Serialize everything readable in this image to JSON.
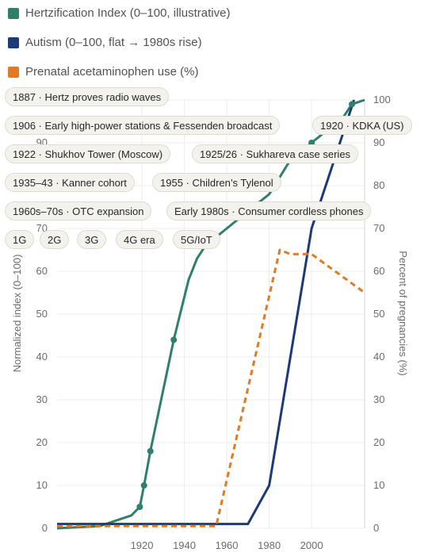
{
  "chart_data": {
    "type": "line",
    "legend": [
      {
        "name": "Hertzification Index (0–100, illustrative)",
        "color": "#2f7f6b"
      },
      {
        "name": "Autism (0–100, flat → 1980s rise)",
        "color": "#1c3a78"
      },
      {
        "name": "Prenatal acetaminophen use (%)",
        "color": "#e07b25"
      }
    ],
    "milestones": [
      "1887 · Hertz proves radio waves",
      "1906 · Early high-power stations & Fessenden broadcast",
      "1920 · KDKA (US)",
      "1922 · Shukhov Tower (Moscow)",
      "1925/26 · Sukhareva case series",
      "1935–43 · Kanner cohort",
      "1955 · Children’s Tylenol",
      "1960s–70s · OTC expansion",
      "Early 1980s · Consumer cordless phones",
      "1G",
      "2G",
      "3G",
      "4G era",
      "5G/IoT"
    ],
    "ylabel": "Normalized index (0–100)",
    "y2label": "Percent of pregnancies (%)",
    "xlim": [
      1880,
      2025
    ],
    "ylim": [
      0,
      100
    ],
    "y2lim": [
      0,
      100
    ],
    "x_ticks": [
      1920,
      1940,
      1960,
      1980,
      2000
    ],
    "y_ticks": [
      0,
      10,
      20,
      30,
      40,
      50,
      60,
      70,
      80,
      90,
      100
    ],
    "grid": true,
    "series": [
      {
        "name": "Hertzification Index (0–100, illustrative)",
        "color": "#2f7f6b",
        "axis": "left",
        "style": "solid",
        "x": [
          1880,
          1900,
          1915,
          1919,
          1921,
          1924,
          1935,
          1942,
          1946,
          1950,
          1955,
          1960,
          1965,
          1970,
          1975,
          1980,
          1985,
          1990,
          1995,
          2000,
          2005,
          2010,
          2015,
          2019,
          2025
        ],
        "y": [
          0,
          0.5,
          3,
          5,
          10,
          18,
          44,
          58,
          63,
          66,
          68,
          70,
          72,
          74,
          76,
          78,
          82,
          86,
          88,
          90,
          92,
          94,
          96,
          99,
          100
        ],
        "markers": [
          false,
          false,
          false,
          true,
          true,
          true,
          true,
          false,
          false,
          false,
          false,
          false,
          false,
          false,
          false,
          false,
          false,
          false,
          false,
          true,
          false,
          false,
          false,
          true,
          false
        ]
      },
      {
        "name": "Autism (0–100, flat → 1980s rise)",
        "color": "#1c3a78",
        "axis": "left",
        "style": "solid",
        "x": [
          1880,
          1970,
          1980,
          2000,
          2010,
          2020
        ],
        "y": [
          1,
          1,
          10,
          70,
          85,
          100
        ]
      },
      {
        "name": "Prenatal acetaminophen use (%)",
        "color": "#e07b25",
        "axis": "right",
        "style": "dashed",
        "x": [
          1880,
          1955,
          1985,
          1990,
          2000,
          2025
        ],
        "y": [
          0.5,
          0.5,
          65,
          64,
          64,
          55
        ]
      }
    ]
  }
}
